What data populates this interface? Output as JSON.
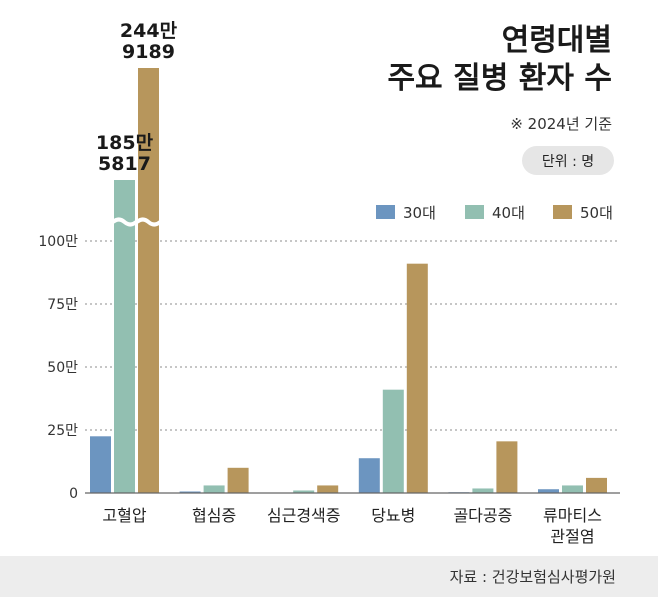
{
  "chart_data": {
    "type": "bar",
    "title_lines": [
      "연령대별",
      "주요 질병 환자 수"
    ],
    "note": "※ 2024년 기준",
    "unit": "단위 : 명",
    "categories": [
      [
        "고혈압"
      ],
      [
        "협심증"
      ],
      [
        "심근경색증"
      ],
      [
        "당뇨병"
      ],
      [
        "골다공증"
      ],
      [
        "류마티스",
        "관절염"
      ]
    ],
    "series": [
      {
        "name": "30대",
        "color": "#6c95c0",
        "values": [
          225000,
          6000,
          1500,
          138000,
          3000,
          15000
        ]
      },
      {
        "name": "40대",
        "color": "#92bfb1",
        "values": [
          1855817,
          30000,
          10000,
          410000,
          18000,
          30000
        ]
      },
      {
        "name": "50대",
        "color": "#b7965c",
        "values": [
          2449189,
          100000,
          30000,
          910000,
          205000,
          60000
        ]
      }
    ],
    "yticks": [
      {
        "value": 0,
        "label": "0"
      },
      {
        "value": 250000,
        "label": "25만"
      },
      {
        "value": 500000,
        "label": "50만"
      },
      {
        "value": 750000,
        "label": "75만"
      },
      {
        "value": 1000000,
        "label": "100만"
      }
    ],
    "ylim": [
      0,
      1000000
    ],
    "axis_break": true,
    "callouts": [
      {
        "series": 1,
        "category": 0,
        "lines": [
          "185만",
          "5817"
        ]
      },
      {
        "series": 2,
        "category": 0,
        "lines": [
          "244만",
          "9189"
        ]
      }
    ],
    "grid": true,
    "legend_position": "top-right",
    "source": "자료 : 건강보험심사평가원"
  }
}
